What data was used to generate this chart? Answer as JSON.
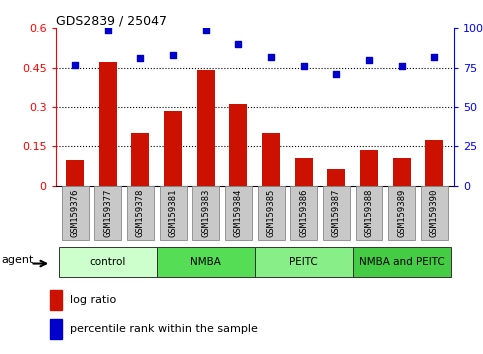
{
  "title": "GDS2839 / 25047",
  "samples": [
    "GSM159376",
    "GSM159377",
    "GSM159378",
    "GSM159381",
    "GSM159383",
    "GSM159384",
    "GSM159385",
    "GSM159386",
    "GSM159387",
    "GSM159388",
    "GSM159389",
    "GSM159390"
  ],
  "log_ratio": [
    0.1,
    0.47,
    0.2,
    0.285,
    0.44,
    0.31,
    0.2,
    0.105,
    0.065,
    0.135,
    0.105,
    0.175
  ],
  "percentile_rank": [
    77,
    99,
    81,
    83,
    99,
    90,
    82,
    76,
    71,
    80,
    76,
    82
  ],
  "bar_color": "#cc1100",
  "dot_color": "#0000cc",
  "ylim_left": [
    0,
    0.6
  ],
  "ylim_right": [
    0,
    100
  ],
  "yticks_left": [
    0,
    0.15,
    0.3,
    0.45,
    0.6
  ],
  "yticks_right": [
    0,
    25,
    50,
    75,
    100
  ],
  "ytick_labels_left": [
    "0",
    "0.15",
    "0.3",
    "0.45",
    "0.6"
  ],
  "ytick_labels_right": [
    "0",
    "25",
    "50",
    "75",
    "100%"
  ],
  "grid_lines": [
    0.15,
    0.3,
    0.45
  ],
  "groups": [
    {
      "label": "control",
      "start": 0,
      "end": 3,
      "color": "#ccffcc"
    },
    {
      "label": "NMBA",
      "start": 3,
      "end": 6,
      "color": "#55dd55"
    },
    {
      "label": "PEITC",
      "start": 6,
      "end": 9,
      "color": "#88ee88"
    },
    {
      "label": "NMBA and PEITC",
      "start": 9,
      "end": 12,
      "color": "#44cc44"
    }
  ],
  "agent_label": "agent",
  "legend_bar_label": "log ratio",
  "legend_dot_label": "percentile rank within the sample",
  "bar_width": 0.55,
  "tickbox_color": "#c8c8c8",
  "tickbox_edge": "#888888"
}
